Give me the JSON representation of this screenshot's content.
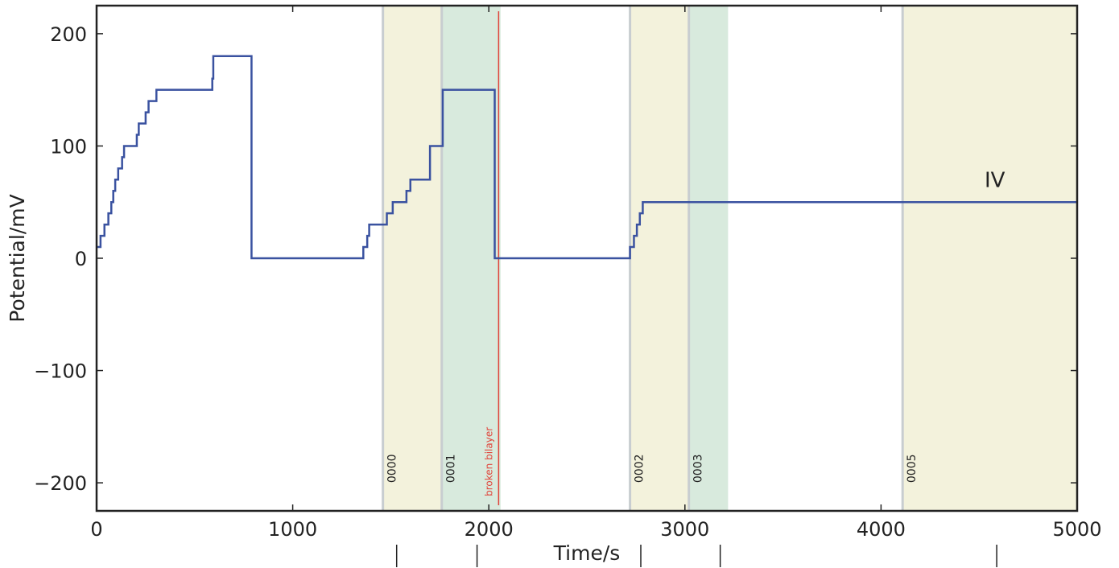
{
  "chart_data": {
    "type": "line",
    "title": "",
    "xlabel": "Time/s",
    "ylabel": "Potential/mV",
    "xlim": [
      0,
      5000
    ],
    "ylim": [
      -225,
      225
    ],
    "xticks": [
      0,
      1000,
      2000,
      3000,
      4000,
      5000
    ],
    "yticks": [
      -200,
      -100,
      0,
      100,
      200
    ],
    "xtick_labels": [
      "0",
      "1000",
      "2000",
      "3000",
      "4000",
      "5000"
    ],
    "ytick_labels": [
      "−200",
      "−100",
      "0",
      "100",
      "200"
    ],
    "grid": false,
    "series": [
      {
        "color": "#3a52a0",
        "step": true,
        "points": [
          [
            0,
            10
          ],
          [
            20,
            10
          ],
          [
            20,
            20
          ],
          [
            40,
            20
          ],
          [
            40,
            30
          ],
          [
            60,
            30
          ],
          [
            60,
            40
          ],
          [
            75,
            40
          ],
          [
            75,
            50
          ],
          [
            85,
            50
          ],
          [
            85,
            60
          ],
          [
            95,
            60
          ],
          [
            95,
            70
          ],
          [
            110,
            70
          ],
          [
            110,
            80
          ],
          [
            130,
            80
          ],
          [
            130,
            90
          ],
          [
            140,
            90
          ],
          [
            140,
            100
          ],
          [
            205,
            100
          ],
          [
            205,
            110
          ],
          [
            215,
            110
          ],
          [
            215,
            120
          ],
          [
            250,
            120
          ],
          [
            250,
            130
          ],
          [
            265,
            130
          ],
          [
            265,
            140
          ],
          [
            305,
            140
          ],
          [
            305,
            150
          ],
          [
            590,
            150
          ],
          [
            590,
            160
          ],
          [
            595,
            160
          ],
          [
            595,
            180
          ],
          [
            790,
            180
          ],
          [
            790,
            0
          ],
          [
            1360,
            0
          ],
          [
            1360,
            10
          ],
          [
            1380,
            10
          ],
          [
            1380,
            20
          ],
          [
            1390,
            20
          ],
          [
            1390,
            30
          ],
          [
            1480,
            30
          ],
          [
            1480,
            40
          ],
          [
            1510,
            40
          ],
          [
            1510,
            50
          ],
          [
            1580,
            50
          ],
          [
            1580,
            60
          ],
          [
            1600,
            60
          ],
          [
            1600,
            70
          ],
          [
            1700,
            70
          ],
          [
            1700,
            100
          ],
          [
            1765,
            100
          ],
          [
            1765,
            150
          ],
          [
            2030,
            150
          ],
          [
            2030,
            0
          ],
          [
            2720,
            0
          ],
          [
            2720,
            10
          ],
          [
            2740,
            10
          ],
          [
            2740,
            20
          ],
          [
            2755,
            20
          ],
          [
            2755,
            30
          ],
          [
            2770,
            30
          ],
          [
            2770,
            40
          ],
          [
            2785,
            40
          ],
          [
            2785,
            50
          ],
          [
            5000,
            50
          ]
        ]
      }
    ],
    "shaded_regions": [
      {
        "x0": 1460,
        "x1": 1760,
        "color": "#f3f2dc",
        "label": "0000"
      },
      {
        "x0": 1760,
        "x1": 2060,
        "color": "#d8eadd",
        "label": "0001"
      },
      {
        "x0": 2720,
        "x1": 3020,
        "color": "#f3f2dc",
        "label": "0002"
      },
      {
        "x0": 3020,
        "x1": 3220,
        "color": "#d8eadd",
        "label": "0003"
      },
      {
        "x0": 4110,
        "x1": 5000,
        "color": "#f3f2dc",
        "label": "0005"
      }
    ],
    "vertical_markers": [
      {
        "x": 2050,
        "color": "#e0443a",
        "label": "broken bilayer"
      }
    ],
    "annotations": [
      {
        "text": "IV",
        "x": 4580,
        "y": 70
      }
    ],
    "bottom_tick_marks": [
      1530,
      1940,
      2775,
      3180,
      4590
    ]
  }
}
